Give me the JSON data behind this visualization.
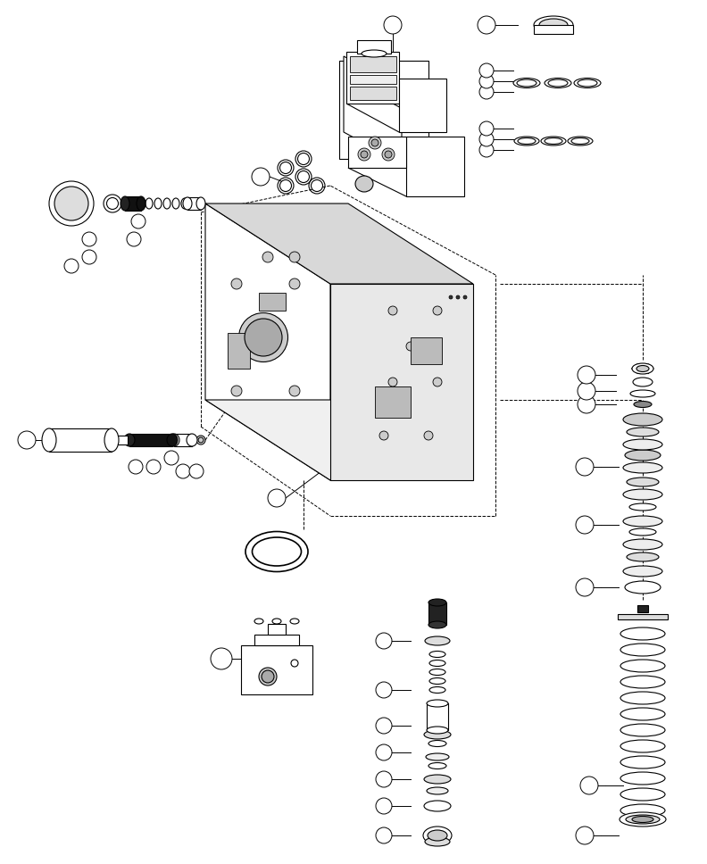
{
  "title": "",
  "bg_color": "#ffffff",
  "line_color": "#000000",
  "figsize": [
    7.92,
    9.68
  ],
  "dpi": 100
}
